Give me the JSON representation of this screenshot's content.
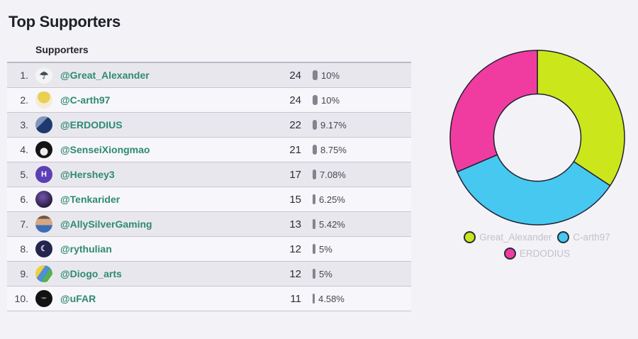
{
  "title": "Top Supporters",
  "table": {
    "header": "Supporters",
    "rows": [
      {
        "rank": "1.",
        "username": "@Great_Alexander",
        "count": 24,
        "percent": "10%",
        "percent_value": 10,
        "avatar": {
          "name": "great-alexander-avatar",
          "css": "radial-gradient(circle at 50% 78%, #f4f4f4 60%, #e6e6ea)",
          "glyph": "☂",
          "glyph_color": "#3e4b57",
          "glyph_size": 14
        }
      },
      {
        "rank": "2.",
        "username": "@C-arth97",
        "count": 24,
        "percent": "10%",
        "percent_value": 10,
        "avatar": {
          "name": "c-arth97-avatar",
          "css": "radial-gradient(circle at 50% 32%, #e9cf52 42%, #f4ecd4 45%)",
          "glyph": "",
          "glyph_color": "",
          "glyph_size": 0
        }
      },
      {
        "rank": "3.",
        "username": "@ERDODIUS",
        "count": 22,
        "percent": "9.17%",
        "percent_value": 9.17,
        "avatar": {
          "name": "erdodius-avatar",
          "css": "linear-gradient(135deg, #8195bd 38%, #1d3a6e 40%)",
          "glyph": "",
          "glyph_color": "",
          "glyph_size": 0
        }
      },
      {
        "rank": "4.",
        "username": "@SenseiXiongmao",
        "count": 21,
        "percent": "8.75%",
        "percent_value": 8.75,
        "avatar": {
          "name": "senseixiongmao-avatar",
          "css": "radial-gradient(circle at 50% 62%, #ececec 27%, #141414 30%)",
          "glyph": "",
          "glyph_color": "",
          "glyph_size": 0
        }
      },
      {
        "rank": "5.",
        "username": "@Hershey3",
        "count": 17,
        "percent": "7.08%",
        "percent_value": 7.08,
        "avatar": {
          "name": "hershey3-avatar",
          "css": "#5d3fb5",
          "glyph": "H",
          "glyph_color": "#ffffff",
          "glyph_size": 11
        }
      },
      {
        "rank": "6.",
        "username": "@Tenkarider",
        "count": 15,
        "percent": "6.25%",
        "percent_value": 6.25,
        "avatar": {
          "name": "tenkarider-avatar",
          "css": "radial-gradient(circle at 42% 36%, #6b4fa0 10%, #23183a 75%)",
          "glyph": "",
          "glyph_color": "",
          "glyph_size": 0
        }
      },
      {
        "rank": "7.",
        "username": "@AllySilverGaming",
        "count": 13,
        "percent": "5.42%",
        "percent_value": 5.42,
        "avatar": {
          "name": "allysilvergaming-avatar",
          "css": "linear-gradient(180deg, #6e5743 18%, #d7a684 20% 55%, #3a6fb5 57%)",
          "glyph": "",
          "glyph_color": "",
          "glyph_size": 0
        }
      },
      {
        "rank": "8.",
        "username": "@rythulian",
        "count": 12,
        "percent": "5%",
        "percent_value": 5,
        "avatar": {
          "name": "rythulian-avatar",
          "css": "#23254f",
          "glyph": "☾",
          "glyph_color": "#e8e4f2",
          "glyph_size": 11
        }
      },
      {
        "rank": "9.",
        "username": "@Diogo_arts",
        "count": 12,
        "percent": "5%",
        "percent_value": 5,
        "avatar": {
          "name": "diogo-arts-avatar",
          "css": "linear-gradient(125deg, #f2cf3d 34%, #4d8fd8 36% 58%, #57b04f 60% 80%, #f2f2f2 82%)",
          "glyph": "",
          "glyph_color": "",
          "glyph_size": 0
        }
      },
      {
        "rank": "10.",
        "username": "@uFAR",
        "count": 11,
        "percent": "4.58%",
        "percent_value": 4.58,
        "avatar": {
          "name": "ufar-avatar",
          "css": "#121212",
          "glyph": "·‹›·",
          "glyph_color": "#ffffff",
          "glyph_size": 6
        }
      }
    ]
  },
  "chart_data": {
    "type": "pie",
    "subtype": "donut",
    "title": "",
    "labels": [
      "Great_Alexander",
      "C-arth97",
      "ERDODIUS"
    ],
    "values": [
      24,
      24,
      22
    ],
    "colors": [
      "#cbe71c",
      "#46c8f0",
      "#f03ca0"
    ],
    "slice_stroke": "#20212f",
    "inner_radius_ratio": 0.5,
    "start_angle_deg": 0,
    "direction": "clockwise",
    "legend_position": "bottom"
  },
  "theme": {
    "page_bg": "#f3f2f7",
    "row_odd_bg": "#e9e7ee",
    "row_even_bg": "#f7f6fa",
    "row_border": "#c9c6d1",
    "title_color": "#1d2027",
    "username_color": "#2e8b72",
    "count_color": "#2b2d35",
    "percent_bar_color": "#85838f",
    "legend_text_color": "#c4c2ca"
  }
}
